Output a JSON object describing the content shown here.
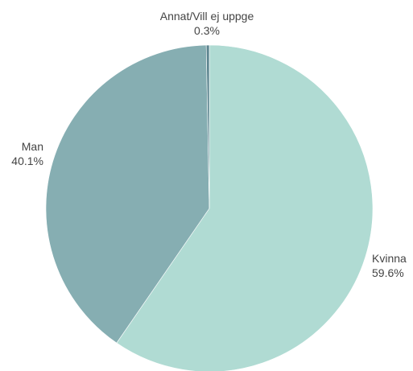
{
  "chart_data": {
    "type": "pie",
    "title": "",
    "slices": [
      {
        "label": "Kvinna",
        "value": 59.6,
        "display": "59.6%",
        "color": "#b0dbd3"
      },
      {
        "label": "Man",
        "value": 40.1,
        "display": "40.1%",
        "color": "#86aeb2"
      },
      {
        "label": "Annat/Vill ej uppge",
        "value": 0.3,
        "display": "0.3%",
        "color": "#5e8690"
      }
    ],
    "legend": "none"
  }
}
